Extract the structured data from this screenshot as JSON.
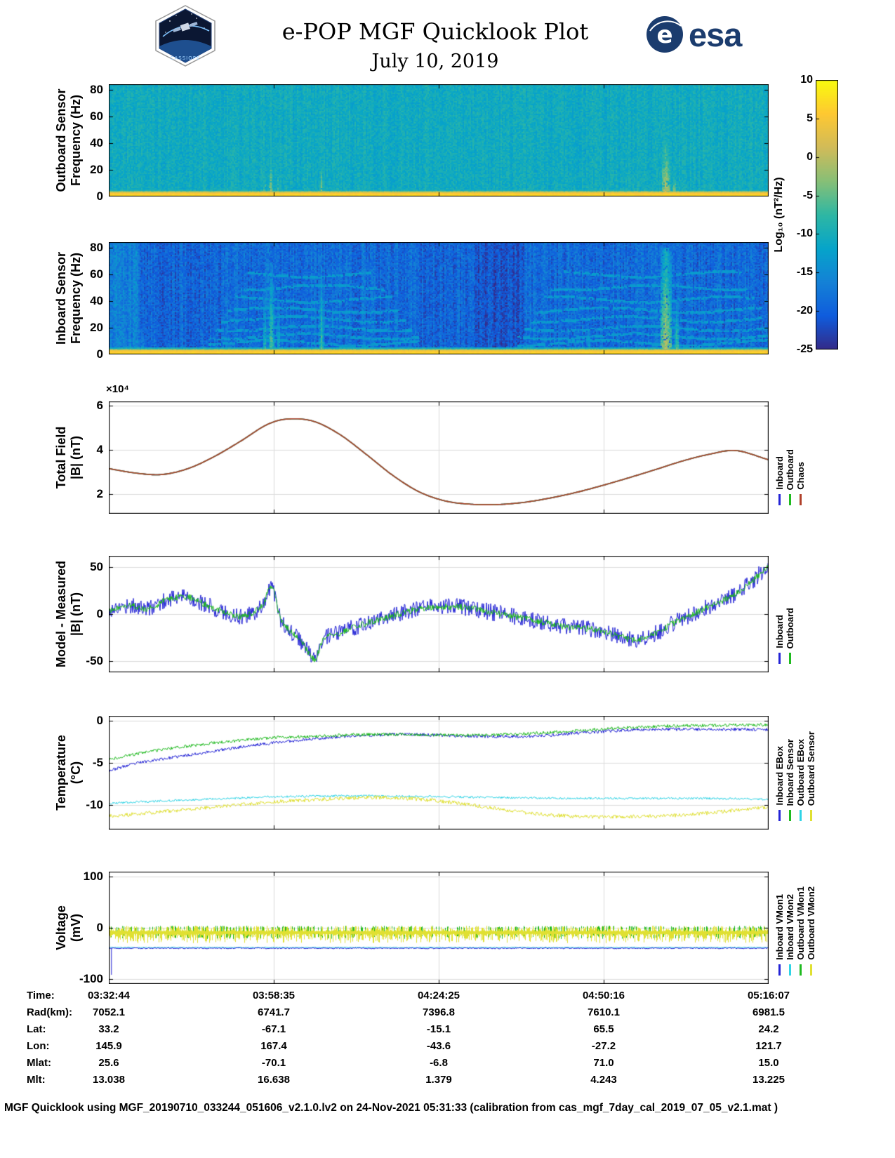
{
  "header": {
    "title": "e-POP MGF Quicklook Plot",
    "date": "July 10, 2019",
    "mission": "CASSIOPE",
    "esa_text": "esa"
  },
  "colorbar": {
    "label": "Log₁₀ (nT²/Hz)",
    "ticks": [
      10,
      5,
      0,
      -5,
      -10,
      -15,
      -20,
      -25
    ],
    "range": [
      -25,
      10
    ],
    "colormap": "parula"
  },
  "time_axis": {
    "ticks": [
      "03:32:44",
      "03:58:35",
      "04:24:25",
      "04:50:16",
      "05:16:07"
    ]
  },
  "chart_data": [
    {
      "id": "outboard-spec",
      "type": "heatmap",
      "ylabel_lines": [
        "Outboard Sensor",
        "Frequency (Hz)"
      ],
      "ylim": [
        0,
        84
      ],
      "yticks": [
        0,
        20,
        40,
        60,
        80
      ],
      "clim": [
        -25,
        10
      ],
      "colormap": "parula",
      "seed": 11,
      "base": -10.5,
      "noise": 2.0,
      "col_jitter": 1.0,
      "bottom_band": {
        "height_hz": 2.6,
        "value": 6.5
      },
      "streaks": [
        {
          "x": 0.236,
          "w": 0.004,
          "top_hz": 30,
          "value": -2
        },
        {
          "x": 0.245,
          "w": 0.006,
          "top_hz": 38,
          "value": -1
        },
        {
          "x": 0.256,
          "w": 0.004,
          "top_hz": 26,
          "value": -3
        },
        {
          "x": 0.322,
          "w": 0.005,
          "top_hz": 32,
          "value": -2
        },
        {
          "x": 0.41,
          "w": 0.003,
          "top_hz": 14,
          "value": -4
        },
        {
          "x": 0.728,
          "w": 0.004,
          "top_hz": 16,
          "value": -3
        },
        {
          "x": 0.845,
          "w": 0.014,
          "top_hz": 42,
          "value": 1.5
        },
        {
          "x": 0.858,
          "w": 0.006,
          "top_hz": 24,
          "value": -1
        }
      ]
    },
    {
      "id": "inboard-spec",
      "type": "heatmap",
      "ylabel_lines": [
        "Inboard Sensor",
        "Frequency (Hz)"
      ],
      "ylim": [
        0,
        84
      ],
      "yticks": [
        0,
        20,
        40,
        60,
        80
      ],
      "clim": [
        -25,
        10
      ],
      "colormap": "parula",
      "seed": 29,
      "base": -19.5,
      "noise": 2.8,
      "col_jitter": 1.8,
      "bottom_band": {
        "height_hz": 2.6,
        "value": 6.5
      },
      "blocks": [
        {
          "x0": 0,
          "x1": 0.045,
          "dv": 3
        },
        {
          "x0": 0.17,
          "x1": 0.47,
          "dv": 0.8
        },
        {
          "x0": 0.555,
          "x1": 0.63,
          "dv": -1.6
        },
        {
          "x0": 0.63,
          "x1": 0.99,
          "dv": 0.5
        }
      ],
      "hlines": [
        {
          "y": 8,
          "x0": 0.15,
          "x1": 0.47
        },
        {
          "y": 13,
          "x0": 0.15,
          "x1": 0.47
        },
        {
          "y": 19,
          "x0": 0.16,
          "x1": 0.46
        },
        {
          "y": 26,
          "x0": 0.17,
          "x1": 0.45
        },
        {
          "y": 33,
          "x0": 0.18,
          "x1": 0.44
        },
        {
          "y": 41,
          "x0": 0.19,
          "x1": 0.43
        },
        {
          "y": 50,
          "x0": 0.2,
          "x1": 0.42
        },
        {
          "y": 60,
          "x0": 0.21,
          "x1": 0.4
        },
        {
          "y": 8,
          "x0": 0.62,
          "x1": 1
        },
        {
          "y": 13,
          "x0": 0.62,
          "x1": 1
        },
        {
          "y": 19,
          "x0": 0.63,
          "x1": 1
        },
        {
          "y": 26,
          "x0": 0.64,
          "x1": 0.99
        },
        {
          "y": 33,
          "x0": 0.65,
          "x1": 0.99
        },
        {
          "y": 41,
          "x0": 0.66,
          "x1": 0.98
        },
        {
          "y": 50,
          "x0": 0.67,
          "x1": 0.97
        },
        {
          "y": 60,
          "x0": 0.69,
          "x1": 0.96
        }
      ],
      "streaks": [
        {
          "x": 0.05,
          "w": 0.012,
          "top_hz": 26,
          "value": -12
        },
        {
          "x": 0.236,
          "w": 0.005,
          "top_hz": 55,
          "value": -6
        },
        {
          "x": 0.246,
          "w": 0.007,
          "top_hz": 70,
          "value": -4
        },
        {
          "x": 0.257,
          "w": 0.005,
          "top_hz": 45,
          "value": -7
        },
        {
          "x": 0.322,
          "w": 0.006,
          "top_hz": 60,
          "value": -5
        },
        {
          "x": 0.728,
          "w": 0.005,
          "top_hz": 30,
          "value": -8
        },
        {
          "x": 0.845,
          "w": 0.016,
          "top_hz": 80,
          "value": 0
        },
        {
          "x": 0.862,
          "w": 0.007,
          "top_hz": 40,
          "value": -4
        }
      ]
    },
    {
      "id": "total-field",
      "type": "line",
      "ylabel_lines": [
        "Total Field",
        "|B| (nT)"
      ],
      "scale_label": "×10⁴",
      "unit": "1e4 nT",
      "ylim": [
        1.1,
        6.2
      ],
      "yticks": [
        2,
        4,
        6
      ],
      "seed": 3,
      "x": [
        0,
        0.04,
        0.08,
        0.12,
        0.16,
        0.2,
        0.24,
        0.27,
        0.31,
        0.35,
        0.39,
        0.43,
        0.47,
        0.51,
        0.55,
        0.59,
        0.63,
        0.67,
        0.71,
        0.75,
        0.79,
        0.83,
        0.87,
        0.91,
        0.95,
        1
      ],
      "y_shared": [
        3.15,
        2.95,
        2.88,
        3.15,
        3.7,
        4.4,
        5.15,
        5.4,
        5.3,
        4.7,
        3.8,
        2.85,
        2.1,
        1.68,
        1.53,
        1.52,
        1.62,
        1.82,
        2.08,
        2.4,
        2.75,
        3.12,
        3.5,
        3.8,
        3.97,
        3.55
      ],
      "series": [
        {
          "name": "Inboard",
          "color": "#2323d6",
          "mode": "smooth"
        },
        {
          "name": "Outboard",
          "color": "#1fba1f",
          "mode": "smooth"
        },
        {
          "name": "Chaos",
          "color": "#b0402a",
          "mode": "smooth"
        }
      ]
    },
    {
      "id": "model-measured",
      "type": "line",
      "ylabel_lines": [
        "Model - Measured",
        "|B| (nT)"
      ],
      "ylim": [
        -62,
        62
      ],
      "yticks": [
        -50,
        0,
        50
      ],
      "seed": 17,
      "x": [
        0,
        0.03,
        0.06,
        0.09,
        0.12,
        0.15,
        0.175,
        0.2,
        0.22,
        0.235,
        0.247,
        0.26,
        0.275,
        0.29,
        0.302,
        0.312,
        0.325,
        0.35,
        0.38,
        0.42,
        0.46,
        0.5,
        0.54,
        0.58,
        0.62,
        0.66,
        0.7,
        0.74,
        0.775,
        0.8,
        0.83,
        0.86,
        0.9,
        0.94,
        0.97,
        1
      ],
      "y_shared": [
        4,
        9,
        6,
        16,
        18,
        9,
        2,
        -3,
        2,
        12,
        30,
        -5,
        -18,
        -28,
        -40,
        -48,
        -28,
        -20,
        -12,
        -4,
        4,
        8,
        7,
        2,
        -3,
        -9,
        -14,
        -17,
        -24,
        -28,
        -20,
        -8,
        5,
        18,
        32,
        52
      ],
      "series": [
        {
          "name": "Inboard",
          "color": "#2323d6",
          "mode": "noisy",
          "noise": 9
        },
        {
          "name": "Outboard",
          "color": "#1fba1f",
          "mode": "noisy",
          "noise": 3.5
        }
      ]
    },
    {
      "id": "temperature",
      "type": "line",
      "ylabel_lines": [
        "Temperature",
        "(°C)"
      ],
      "ylim": [
        -12.9,
        0.6
      ],
      "yticks": [
        0,
        -5,
        -10
      ],
      "seed": 23,
      "x": [
        0,
        0.05,
        0.1,
        0.15,
        0.2,
        0.25,
        0.3,
        0.35,
        0.4,
        0.45,
        0.5,
        0.55,
        0.6,
        0.65,
        0.7,
        0.75,
        0.8,
        0.85,
        0.9,
        0.95,
        1
      ],
      "series": [
        {
          "name": "Inboard EBox",
          "color": "#2323d6",
          "mode": "noisy",
          "noise": 0.18,
          "y": [
            -5.9,
            -4.9,
            -4.3,
            -3.7,
            -3.1,
            -2.6,
            -2.2,
            -1.9,
            -1.7,
            -1.6,
            -1.7,
            -1.8,
            -1.85,
            -1.8,
            -1.5,
            -1.25,
            -1.05,
            -1,
            -1,
            -1,
            -1
          ]
        },
        {
          "name": "Inboard Sensor",
          "color": "#1fba1f",
          "mode": "noisy",
          "noise": 0.18,
          "y": [
            -4.6,
            -3.8,
            -3.2,
            -2.7,
            -2.3,
            -2,
            -1.85,
            -1.7,
            -1.6,
            -1.6,
            -1.65,
            -1.7,
            -1.6,
            -1.45,
            -1.2,
            -0.95,
            -0.75,
            -0.6,
            -0.55,
            -0.5,
            -0.45
          ]
        },
        {
          "name": "Outboard EBox",
          "color": "#2fd4e6",
          "mode": "noisy",
          "noise": 0.12,
          "y": [
            -9.8,
            -9.6,
            -9.45,
            -9.3,
            -9.15,
            -9,
            -8.95,
            -8.9,
            -8.9,
            -8.95,
            -9,
            -9.05,
            -9.1,
            -9.15,
            -9.2,
            -9.2,
            -9.2,
            -9.2,
            -9.2,
            -9.25,
            -9.3
          ]
        },
        {
          "name": "Outboard Sensor",
          "color": "#e0e032",
          "mode": "noisy",
          "noise": 0.22,
          "y": [
            -11.3,
            -11,
            -10.65,
            -10.3,
            -9.95,
            -9.6,
            -9.4,
            -9.2,
            -9.1,
            -9.2,
            -9.5,
            -10,
            -10.55,
            -11.05,
            -11.3,
            -11.4,
            -11.35,
            -11.25,
            -11,
            -10.6,
            -10.2
          ]
        }
      ]
    },
    {
      "id": "voltage",
      "type": "line",
      "ylabel_lines": [
        "Voltage",
        "(mV)"
      ],
      "ylim": [
        -110,
        110
      ],
      "yticks": [
        -100,
        0,
        100
      ],
      "seed": 31,
      "draw_order": [
        2,
        3,
        1,
        0
      ],
      "series": [
        {
          "name": "Inboard VMon1",
          "color": "#2323d6",
          "mode": "hline",
          "y0": -40,
          "noise": 1.2,
          "left_spike": {
            "x": 0.004,
            "to": -92
          }
        },
        {
          "name": "Inboard VMon2",
          "color": "#2fd4e6",
          "mode": "hline",
          "y0": -38.5,
          "noise": 0.8
        },
        {
          "name": "Outboard VMon1",
          "color": "#1fba1f",
          "mode": "spikes",
          "top": 4,
          "bottom": -22,
          "density": 0.3
        },
        {
          "name": "Outboard VMon2",
          "color": "#e0e032",
          "mode": "band",
          "center": -8,
          "top_amp": 11,
          "bottom_amp": 18
        }
      ]
    }
  ],
  "table": {
    "rows": [
      {
        "label": "Time:",
        "values": [
          "03:32:44",
          "03:58:35",
          "04:24:25",
          "04:50:16",
          "05:16:07"
        ]
      },
      {
        "label": "Rad(km):",
        "values": [
          "7052.1",
          "6741.7",
          "7396.8",
          "7610.1",
          "6981.5"
        ]
      },
      {
        "label": "Lat:",
        "values": [
          "33.2",
          "-67.1",
          "-15.1",
          "65.5",
          "24.2"
        ]
      },
      {
        "label": "Lon:",
        "values": [
          "145.9",
          "167.4",
          "-43.6",
          "-27.2",
          "121.7"
        ]
      },
      {
        "label": "Mlat:",
        "values": [
          "25.6",
          "-70.1",
          "-6.8",
          "71.0",
          "15.0"
        ]
      },
      {
        "label": "Mlt:",
        "values": [
          "13.038",
          "16.638",
          "1.379",
          "4.243",
          "13.225"
        ]
      }
    ]
  },
  "footer": "MGF Quicklook using MGF_20190710_033244_051606_v2.1.0.lv2 on 24-Nov-2021 05:31:33 (calibration from cas_mgf_7day_cal_2019_07_05_v2.1.mat )"
}
